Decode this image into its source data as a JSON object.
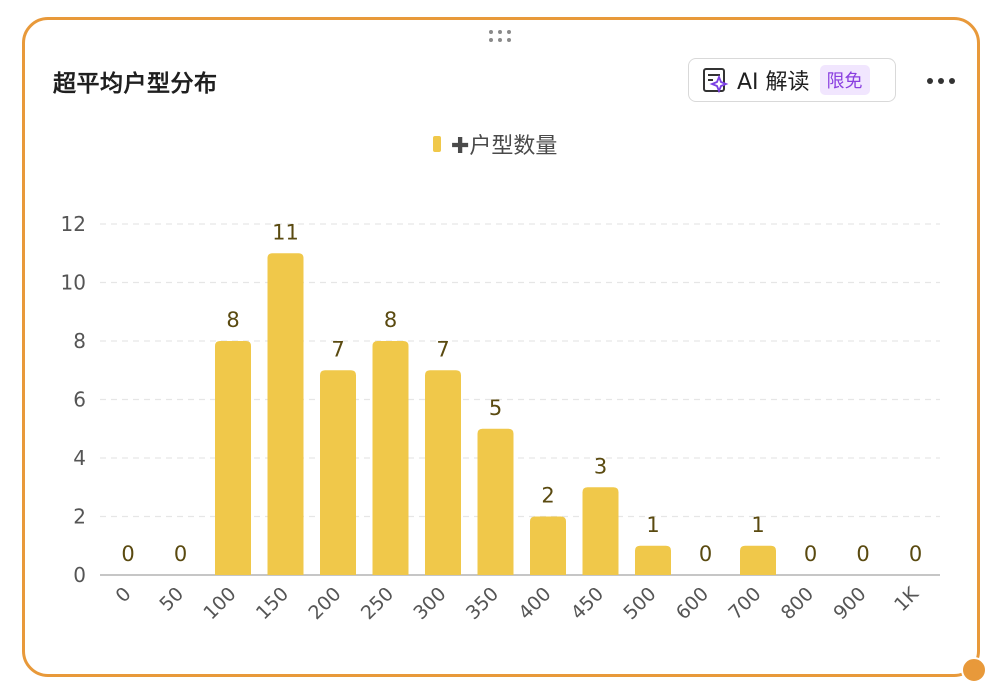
{
  "card": {
    "title": "超平均户型分布",
    "ai_button": {
      "label": "AI 解读",
      "badge": "限免"
    }
  },
  "colors": {
    "bar": "#F0C84A",
    "border": "#E8993A",
    "badge_bg": "#F1E6FE",
    "badge_text": "#8A3FE0"
  },
  "chart_data": {
    "type": "bar",
    "categories": [
      "0",
      "50",
      "100",
      "150",
      "200",
      "250",
      "300",
      "350",
      "400",
      "450",
      "500",
      "600",
      "700",
      "800",
      "900",
      "1K"
    ],
    "series": [
      {
        "name": "✚户型数量",
        "values": [
          0,
          0,
          8,
          11,
          7,
          8,
          7,
          5,
          2,
          3,
          1,
          0,
          1,
          0,
          0,
          0
        ]
      }
    ],
    "yticks": [
      "0",
      "2",
      "4",
      "6",
      "8",
      "10",
      "12"
    ],
    "ylim": [
      0,
      12
    ],
    "grid": true,
    "data_labels": true,
    "legend_position": "top-center"
  }
}
